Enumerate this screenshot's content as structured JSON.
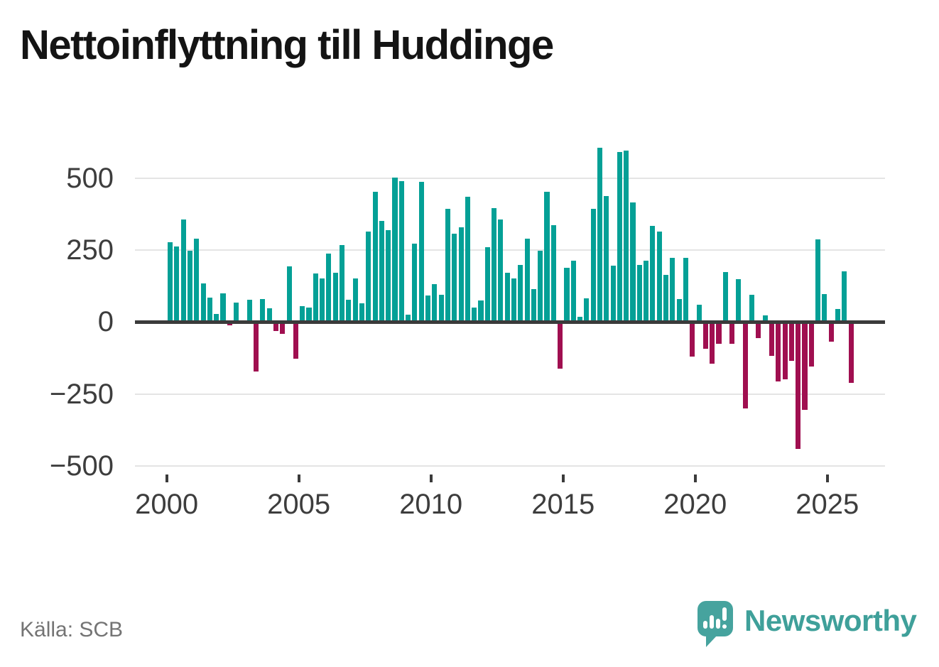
{
  "title": "Nettoinflyttning till Huddinge",
  "source": "Källa: SCB",
  "branding": {
    "name": "Newsworthy"
  },
  "colors": {
    "positive": "#04a096",
    "negative": "#a00f50",
    "zero_line": "#3b3b3b",
    "gridline": "#e4e4e4",
    "axis_text": "#3d3d3d",
    "title_text": "#141414",
    "source_text": "#747474",
    "brand_teal": "#3fa09a"
  },
  "chart_data": {
    "type": "bar",
    "title": "Nettoinflyttning till Huddinge",
    "xlabel": "",
    "ylabel": "",
    "frequency": "quarterly",
    "start_period": "2000 Q1",
    "end_period": "2025 Q4",
    "ylim": [
      -500,
      620
    ],
    "grid": true,
    "y_ticks": [
      500,
      250,
      0,
      -250,
      -500
    ],
    "y_tick_labels": [
      "500",
      "250",
      "0",
      "−250",
      "−500"
    ],
    "x_tick_labels": [
      "2000",
      "2005",
      "2010",
      "2015",
      "2020",
      "2025"
    ],
    "values": [
      276,
      262,
      355,
      248,
      290,
      133,
      84,
      27,
      100,
      -11,
      67,
      0,
      78,
      -172,
      80,
      48,
      -31,
      -42,
      192,
      -128,
      55,
      51,
      169,
      151,
      238,
      171,
      267,
      77,
      152,
      65,
      314,
      451,
      351,
      320,
      502,
      489,
      25,
      273,
      487,
      91,
      132,
      94,
      392,
      306,
      330,
      435,
      51,
      76,
      259,
      396,
      357,
      171,
      151,
      197,
      290,
      114,
      247,
      451,
      337,
      -162,
      189,
      212,
      18,
      83,
      394,
      604,
      438,
      196,
      591,
      594,
      414,
      198,
      214,
      334,
      314,
      163,
      223,
      80,
      223,
      -119,
      61,
      -93,
      -146,
      -77,
      173,
      -75,
      148,
      -300,
      94,
      -57,
      22,
      -118,
      -207,
      -199,
      -134,
      -442,
      -304,
      -154,
      288,
      97,
      -69,
      45,
      176,
      -211
    ]
  }
}
